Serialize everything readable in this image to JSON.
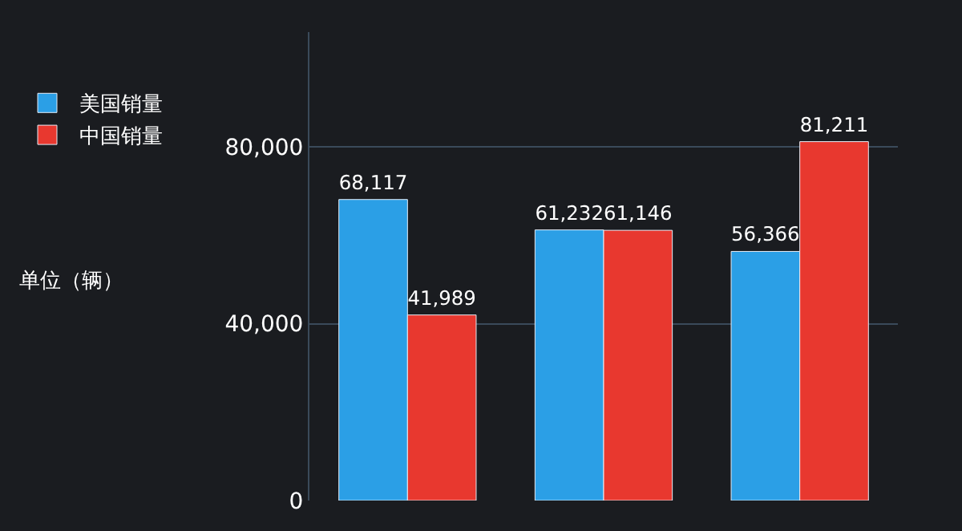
{
  "chart_data": {
    "type": "bar",
    "categories": [
      null,
      null,
      null
    ],
    "series": [
      {
        "name": "美国销量",
        "color": "#2b9fe6",
        "values": [
          68117,
          61232,
          56366
        ],
        "value_labels": [
          "68,117",
          "61,232",
          "56,366"
        ]
      },
      {
        "name": "中国销量",
        "color": "#e8382f",
        "values": [
          41989,
          61146,
          81211
        ],
        "value_labels": [
          "41,989",
          "61,146",
          "81,211"
        ]
      }
    ],
    "ylim": [
      0,
      106000
    ],
    "yticks": [
      {
        "value": 0,
        "label": "0"
      },
      {
        "value": 40000,
        "label": "40,000"
      },
      {
        "value": 80000,
        "label": "80,000"
      }
    ],
    "grid": "y",
    "legend": "left",
    "annotations": [
      "单位（辆）"
    ]
  }
}
